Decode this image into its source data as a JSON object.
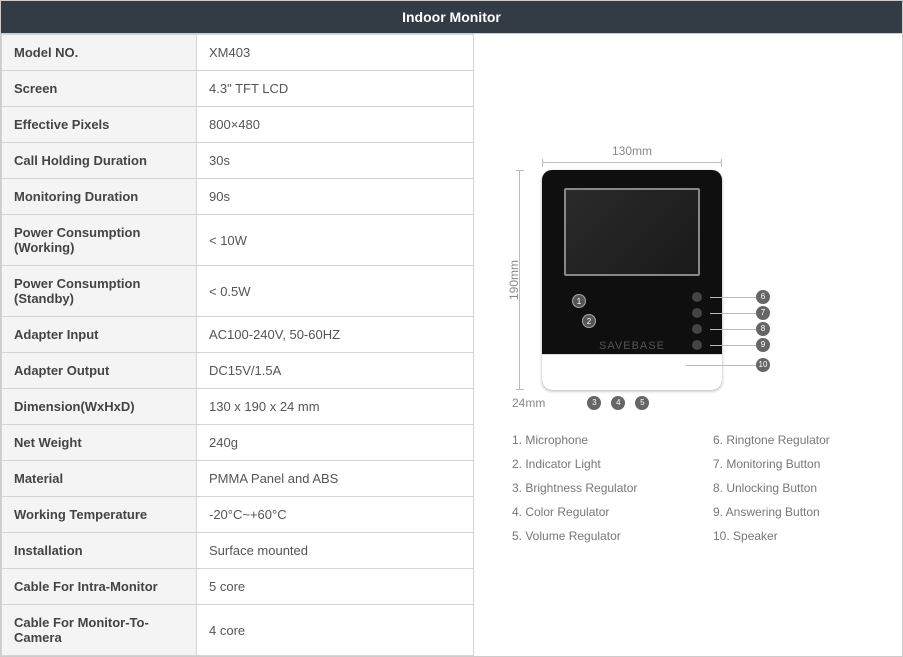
{
  "header": {
    "title": "Indoor Monitor"
  },
  "specs": [
    {
      "label": "Model NO.",
      "value": "XM403"
    },
    {
      "label": "Screen",
      "value": "4.3\" TFT LCD"
    },
    {
      "label": "Effective Pixels",
      "value": "800×480"
    },
    {
      "label": "Call Holding Duration",
      "value": "30s"
    },
    {
      "label": "Monitoring Duration",
      "value": "90s"
    },
    {
      "label": "Power Consumption (Working)",
      "value": "< 10W"
    },
    {
      "label": "Power Consumption (Standby)",
      "value": "< 0.5W"
    },
    {
      "label": "Adapter Input",
      "value": "AC100-240V, 50-60HZ"
    },
    {
      "label": "Adapter Output",
      "value": "DC15V/1.5A"
    },
    {
      "label": "Dimension(WxHxD)",
      "value": "130 x 190 x 24 mm"
    },
    {
      "label": "Net Weight",
      "value": "240g"
    },
    {
      "label": "Material",
      "value": "PMMA Panel and ABS"
    },
    {
      "label": "Working Temperature",
      "value": "-20°C~+60°C"
    },
    {
      "label": "Installation",
      "value": "Surface mounted"
    },
    {
      "label": "Cable For Intra-Monitor",
      "value": "5 core"
    },
    {
      "label": "Cable For Monitor-To-Camera",
      "value": "4 core"
    }
  ],
  "diagram": {
    "width_label": "130mm",
    "height_label": "190mm",
    "depth_label": "24mm",
    "brand_text": "SAVEBASE",
    "colors": {
      "device_body": "#0f0f0f",
      "device_bottom": "#ffffff",
      "dimension_line": "#bbbbbb",
      "dimension_text": "#888888",
      "callout_bg": "#666666",
      "callout_text": "#ffffff"
    }
  },
  "legend": {
    "left": [
      "1. Microphone",
      "2. Indicator Light",
      "3. Brightness Regulator",
      "4. Color Regulator",
      "5. Volume Regulator"
    ],
    "right": [
      "6. Ringtone Regulator",
      "7. Monitoring Button",
      "8. Unlocking Button",
      "9. Answering Button",
      "10. Speaker"
    ]
  },
  "styling": {
    "header_bg": "#333c44",
    "header_text": "#ffffff",
    "border_color": "#d4d4d4",
    "label_bg": "#f4f4f4",
    "label_weight": "bold",
    "value_bg": "#ffffff",
    "text_color": "#555555",
    "font_size_body": 13,
    "font_size_header": 14,
    "font_size_legend": 12
  }
}
